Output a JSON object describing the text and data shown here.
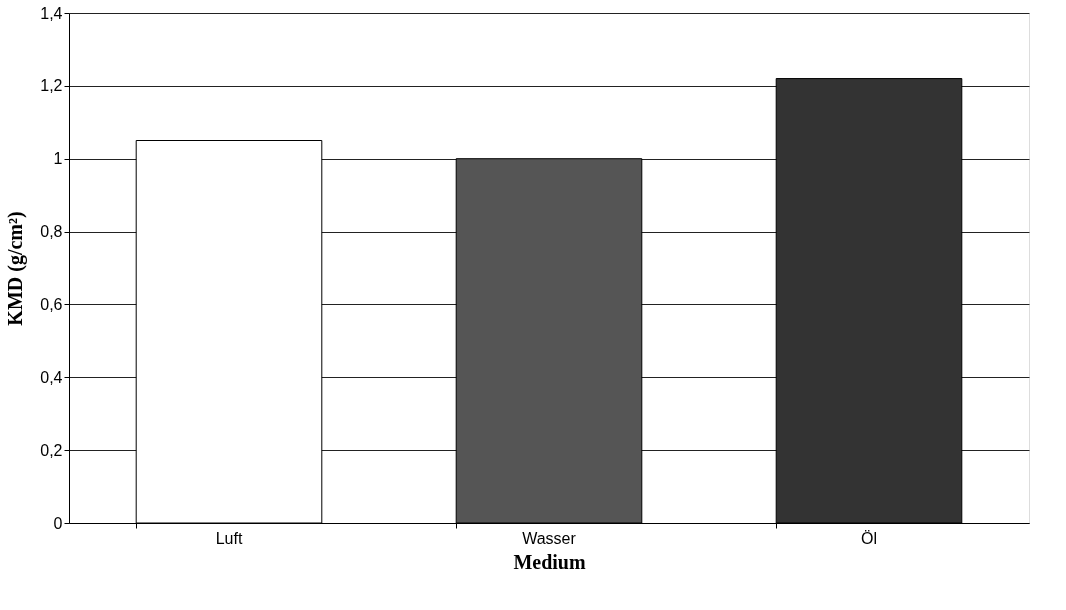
{
  "chart_data": {
    "type": "bar",
    "xlabel": "Medium",
    "ylabel": "KMD (g/cm²)",
    "categories": [
      "Luft",
      "Wasser",
      "Öl"
    ],
    "values": [
      1.05,
      1.0,
      1.22
    ],
    "colors": [
      "#ffffff",
      "#555555",
      "#333333"
    ],
    "ylim": [
      0,
      1.4
    ],
    "yticks": [
      0,
      {
        "value": 0.2,
        "label": "0,2"
      },
      {
        "value": 0.4,
        "label": "0,4"
      },
      {
        "value": 0.6,
        "label": "0,6"
      },
      {
        "value": 0.8,
        "label": "0,8"
      },
      1,
      {
        "value": 1.2,
        "label": "1,2"
      },
      {
        "value": 1.4,
        "label": "1,4"
      }
    ],
    "grid": "y",
    "legend": false
  }
}
